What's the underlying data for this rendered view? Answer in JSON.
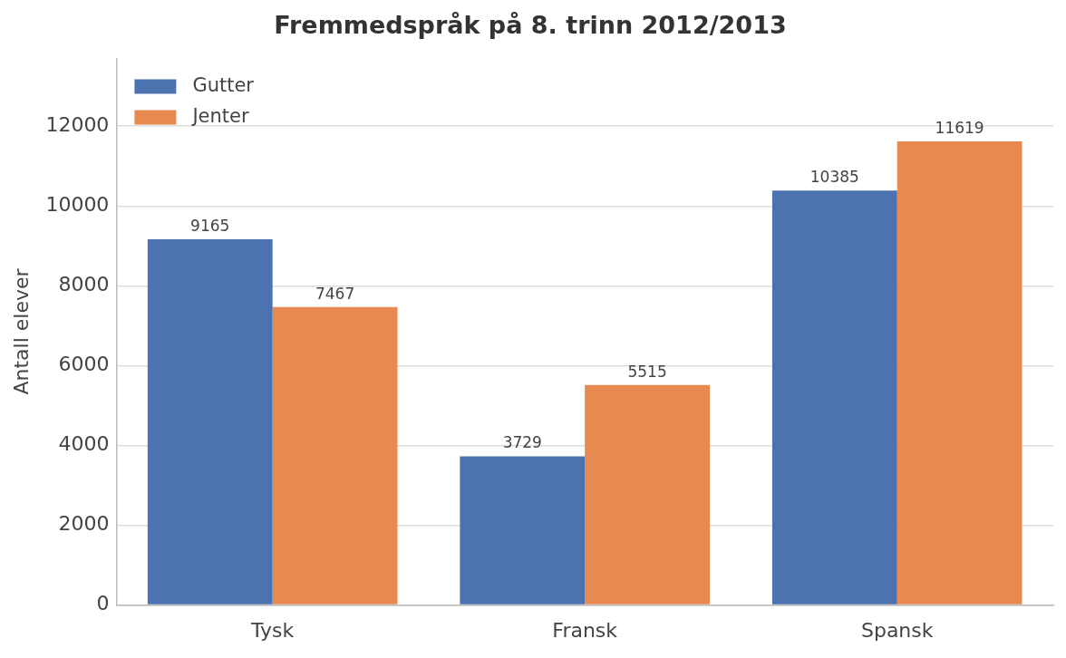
{
  "chart_data": {
    "type": "bar",
    "title": "Fremmedspråk på 8. trinn 2012/2013",
    "ylabel": "Antall elever",
    "categories": [
      "Tysk",
      "Fransk",
      "Spansk"
    ],
    "series": [
      {
        "name": "Gutter",
        "color": "#4c72b0",
        "values": [
          9165,
          3729,
          10385
        ]
      },
      {
        "name": "Jenter",
        "color": "#e8894f",
        "values": [
          7467,
          5515,
          11619
        ]
      }
    ],
    "ylim": [
      0,
      13700
    ],
    "yticks": [
      0,
      2000,
      4000,
      6000,
      8000,
      10000,
      12000
    ],
    "grid": "y",
    "legend": "top left",
    "data_labels": true
  }
}
